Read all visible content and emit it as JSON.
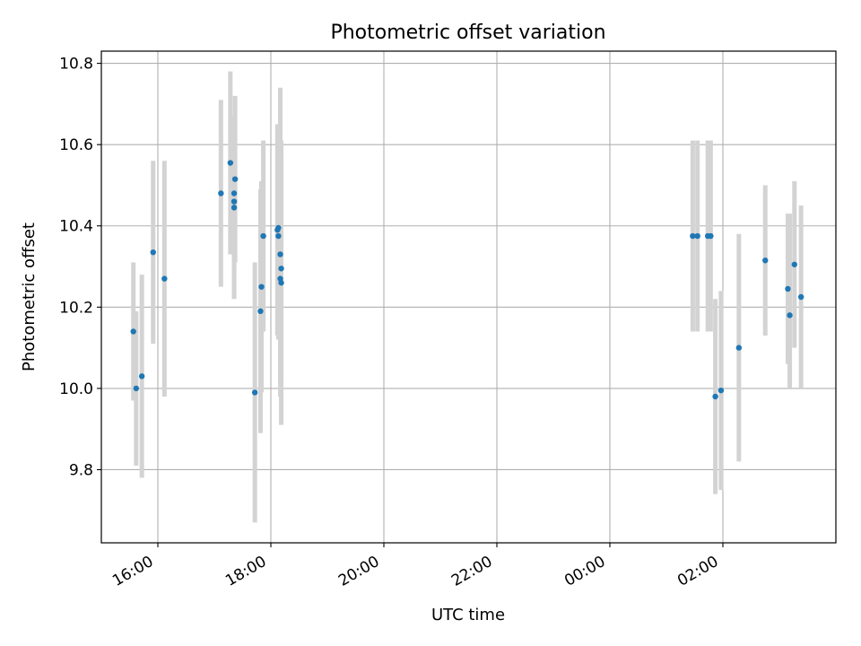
{
  "chart_data": {
    "type": "scatter",
    "title": "Photometric offset variation",
    "xlabel": "UTC time",
    "ylabel": "Photometric offset",
    "x_unit": "UTC time (HH:MM, night spanning midnight)",
    "xlim": [
      "15:00",
      "04:00"
    ],
    "ylim": [
      9.62,
      10.83
    ],
    "grid": true,
    "x_ticks": [
      "16:00",
      "18:00",
      "20:00",
      "22:00",
      "00:00",
      "02:00"
    ],
    "y_ticks": [
      9.8,
      10.0,
      10.2,
      10.4,
      10.6,
      10.8
    ],
    "y_tick_labels": [
      "9.8",
      "10.0",
      "10.2",
      "10.4",
      "10.6",
      "10.8"
    ],
    "colors": {
      "point": "#1f77b4",
      "errorbar": "#d3d3d3",
      "grid": "#b0b0b0"
    },
    "series": [
      {
        "points": [
          {
            "t": "15:34",
            "y": 10.14,
            "lo": 9.97,
            "hi": 10.31
          },
          {
            "t": "15:37",
            "y": 10.0,
            "lo": 9.81,
            "hi": 10.19
          },
          {
            "t": "15:43",
            "y": 10.03,
            "lo": 9.78,
            "hi": 10.28
          },
          {
            "t": "15:55",
            "y": 10.335,
            "lo": 10.11,
            "hi": 10.56
          },
          {
            "t": "16:07",
            "y": 10.27,
            "lo": 9.98,
            "hi": 10.56
          },
          {
            "t": "17:07",
            "y": 10.48,
            "lo": 10.25,
            "hi": 10.71
          },
          {
            "t": "17:17",
            "y": 10.555,
            "lo": 10.33,
            "hi": 10.78
          },
          {
            "t": "17:22",
            "y": 10.515,
            "lo": 10.31,
            "hi": 10.72
          },
          {
            "t": "17:21",
            "y": 10.48,
            "lo": 10.3,
            "hi": 10.66
          },
          {
            "t": "17:21",
            "y": 10.46,
            "lo": 10.28,
            "hi": 10.64
          },
          {
            "t": "17:21",
            "y": 10.445,
            "lo": 10.22,
            "hi": 10.67
          },
          {
            "t": "17:43",
            "y": 9.99,
            "lo": 9.67,
            "hi": 10.31
          },
          {
            "t": "17:49",
            "y": 10.19,
            "lo": 9.89,
            "hi": 10.49
          },
          {
            "t": "17:50",
            "y": 10.25,
            "lo": 9.99,
            "hi": 10.51
          },
          {
            "t": "17:52",
            "y": 10.375,
            "lo": 10.14,
            "hi": 10.61
          },
          {
            "t": "18:07",
            "y": 10.39,
            "lo": 10.13,
            "hi": 10.65
          },
          {
            "t": "18:08",
            "y": 10.395,
            "lo": 10.15,
            "hi": 10.64
          },
          {
            "t": "18:08",
            "y": 10.375,
            "lo": 10.12,
            "hi": 10.63
          },
          {
            "t": "18:10",
            "y": 10.33,
            "lo": 10.0,
            "hi": 10.74
          },
          {
            "t": "18:11",
            "y": 10.295,
            "lo": 10.03,
            "hi": 10.56
          },
          {
            "t": "18:10",
            "y": 10.27,
            "lo": 9.98,
            "hi": 10.56
          },
          {
            "t": "18:11",
            "y": 10.26,
            "lo": 9.91,
            "hi": 10.61
          },
          {
            "t": "01:28",
            "y": 10.375,
            "lo": 10.14,
            "hi": 10.61
          },
          {
            "t": "01:33",
            "y": 10.375,
            "lo": 10.14,
            "hi": 10.61
          },
          {
            "t": "01:44",
            "y": 10.375,
            "lo": 10.14,
            "hi": 10.61
          },
          {
            "t": "01:47",
            "y": 10.375,
            "lo": 10.14,
            "hi": 10.61
          },
          {
            "t": "01:52",
            "y": 9.98,
            "lo": 9.74,
            "hi": 10.22
          },
          {
            "t": "01:58",
            "y": 9.995,
            "lo": 9.75,
            "hi": 10.24
          },
          {
            "t": "02:17",
            "y": 10.1,
            "lo": 9.82,
            "hi": 10.38
          },
          {
            "t": "02:45",
            "y": 10.315,
            "lo": 10.13,
            "hi": 10.5
          },
          {
            "t": "03:09",
            "y": 10.245,
            "lo": 10.06,
            "hi": 10.43
          },
          {
            "t": "03:11",
            "y": 10.18,
            "lo": 10.0,
            "hi": 10.43
          },
          {
            "t": "03:16",
            "y": 10.305,
            "lo": 10.1,
            "hi": 10.51
          },
          {
            "t": "03:23",
            "y": 10.225,
            "lo": 10.0,
            "hi": 10.45
          }
        ]
      }
    ]
  }
}
